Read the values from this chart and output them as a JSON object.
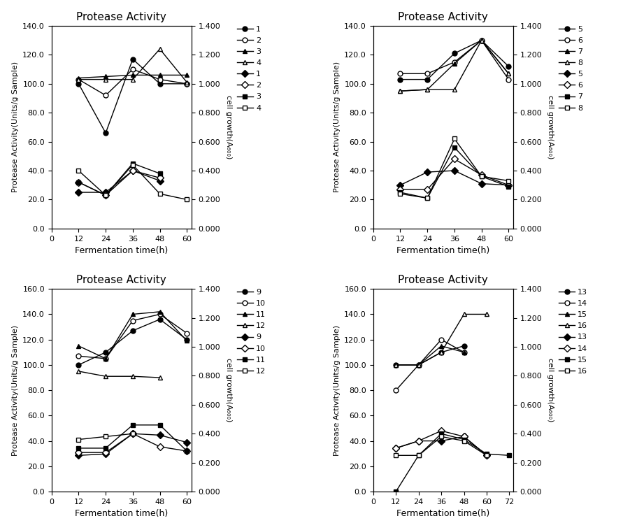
{
  "title": "Protease Activity",
  "xlabel": "Fermentation time(h)",
  "ylabel_left": "Protease Activity(Units/g Sample)",
  "ylabel_right": "cell growth(A600)",
  "panel1": {
    "time": [
      12,
      24,
      36,
      48,
      60
    ],
    "protease": {
      "1": [
        100,
        66,
        117,
        100,
        100
      ],
      "2": [
        103,
        92,
        110,
        103,
        100
      ],
      "3": [
        104,
        105,
        106,
        106,
        106
      ],
      "4": [
        103,
        103,
        103,
        124,
        101
      ]
    },
    "cell_od": {
      "1": [
        0.25,
        0.25,
        0.4,
        0.33,
        null
      ],
      "2": [
        0.32,
        0.23,
        0.4,
        0.35,
        null
      ],
      "3": [
        0.32,
        0.23,
        0.45,
        0.38,
        null
      ],
      "4": [
        0.4,
        0.23,
        0.44,
        0.24,
        0.2
      ]
    },
    "ylim_left": [
      0,
      140
    ],
    "ylim_right": [
      0,
      1.4
    ],
    "xticks": [
      0,
      12,
      24,
      36,
      48,
      60
    ]
  },
  "panel2": {
    "time": [
      12,
      24,
      36,
      48,
      60
    ],
    "protease": {
      "5": [
        103,
        103,
        121,
        130,
        112
      ],
      "6": [
        107,
        107,
        115,
        130,
        103
      ],
      "7": [
        95,
        96,
        114,
        130,
        107
      ],
      "8": [
        95,
        96,
        96,
        130,
        107
      ]
    },
    "cell_od": {
      "5": [
        0.3,
        0.39,
        0.4,
        0.31,
        0.3
      ],
      "6": [
        0.27,
        0.27,
        0.48,
        0.37,
        0.3
      ],
      "7": [
        0.25,
        0.21,
        0.56,
        0.36,
        0.29
      ],
      "8": [
        0.24,
        0.21,
        0.62,
        0.36,
        0.33
      ]
    },
    "ylim_left": [
      0,
      140
    ],
    "ylim_right": [
      0,
      1.4
    ],
    "xticks": [
      0,
      12,
      24,
      36,
      48,
      60
    ]
  },
  "panel3": {
    "time": [
      12,
      24,
      36,
      48,
      60
    ],
    "protease": {
      "9": [
        100,
        110,
        127,
        136,
        120
      ],
      "10": [
        107,
        105,
        135,
        140,
        125
      ],
      "11": [
        115,
        105,
        140,
        142,
        119
      ],
      "12": [
        95,
        91,
        91,
        90,
        null
      ]
    },
    "cell_od": {
      "9": [
        0.25,
        0.26,
        0.4,
        0.39,
        0.34
      ],
      "10": [
        0.27,
        0.27,
        0.4,
        0.31,
        0.28
      ],
      "11": [
        0.3,
        0.3,
        0.46,
        0.46,
        0.28
      ],
      "12": [
        0.36,
        0.38,
        0.4,
        null,
        null
      ]
    },
    "ylim_left": [
      0,
      160
    ],
    "ylim_right": [
      0,
      1.4
    ],
    "xticks": [
      0,
      12,
      24,
      36,
      48,
      60
    ]
  },
  "panel4": {
    "time": [
      12,
      24,
      36,
      48,
      60,
      72
    ],
    "protease": {
      "13": [
        100,
        100,
        110,
        115,
        null,
        null
      ],
      "14": [
        80,
        100,
        120,
        110,
        null,
        null
      ],
      "15": [
        100,
        100,
        115,
        110,
        null,
        null
      ],
      "16": [
        100,
        100,
        110,
        140,
        140,
        null
      ]
    },
    "cell_od": {
      "13": [
        0.3,
        0.35,
        0.35,
        0.38,
        0.25,
        null
      ],
      "14": [
        0.3,
        0.35,
        0.42,
        0.38,
        0.25,
        null
      ],
      "15": [
        0.0,
        0.25,
        0.4,
        0.36,
        0.26,
        0.25
      ],
      "16": [
        0.25,
        0.25,
        0.38,
        0.35,
        0.25,
        null
      ]
    },
    "ylim_left": [
      0,
      160
    ],
    "ylim_right": [
      0,
      1.4
    ],
    "xticks": [
      0,
      12,
      24,
      36,
      48,
      60,
      72
    ]
  }
}
